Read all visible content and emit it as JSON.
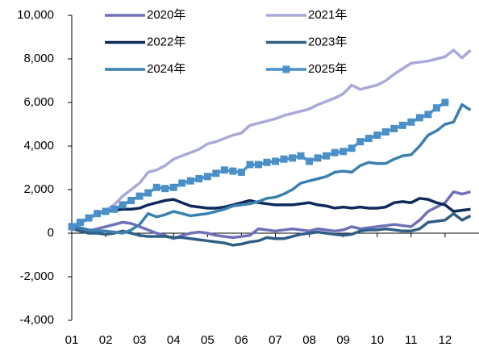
{
  "chart_data": {
    "type": "line",
    "x": [
      1,
      1.25,
      1.5,
      1.75,
      2,
      2.25,
      2.5,
      2.75,
      3,
      3.25,
      3.5,
      3.75,
      4,
      4.25,
      4.5,
      4.75,
      5,
      5.25,
      5.5,
      5.75,
      6,
      6.25,
      6.5,
      6.75,
      7,
      7.25,
      7.5,
      7.75,
      8,
      8.25,
      8.5,
      8.75,
      9,
      9.25,
      9.5,
      9.75,
      10,
      10.25,
      10.5,
      10.75,
      11,
      11.25,
      11.5,
      11.75,
      12,
      12.25,
      12.5,
      12.75
    ],
    "xlim": [
      1,
      13
    ],
    "xticks": [
      {
        "value": 1,
        "label": "01"
      },
      {
        "value": 2,
        "label": "02"
      },
      {
        "value": 3,
        "label": "03"
      },
      {
        "value": 4,
        "label": "04"
      },
      {
        "value": 5,
        "label": "05"
      },
      {
        "value": 6,
        "label": "06"
      },
      {
        "value": 7,
        "label": "07"
      },
      {
        "value": 8,
        "label": "08"
      },
      {
        "value": 9,
        "label": "09"
      },
      10,
      11,
      12
    ],
    "ylim": [
      -4000,
      10000
    ],
    "yticks": [
      {
        "value": -4000,
        "label": "-4,000"
      },
      {
        "value": -2000,
        "label": "-2,000"
      },
      0,
      {
        "value": 2000,
        "label": "2,000"
      },
      {
        "value": 4000,
        "label": "4,000"
      },
      {
        "value": 6000,
        "label": "6,000"
      },
      {
        "value": 8000,
        "label": "8,000"
      },
      {
        "value": 10000,
        "label": "10,000"
      }
    ],
    "series": [
      {
        "name": "2020年",
        "color": "#7070b8",
        "values": [
          300,
          150,
          100,
          200,
          300,
          400,
          500,
          450,
          300,
          150,
          0,
          -100,
          -250,
          -100,
          0,
          50,
          0,
          -100,
          -150,
          -200,
          -150,
          -100,
          200,
          150,
          100,
          150,
          200,
          150,
          100,
          200,
          150,
          100,
          150,
          300,
          200,
          250,
          300,
          350,
          400,
          350,
          300,
          600,
          1000,
          1200,
          1400,
          1900,
          1800,
          1900
        ]
      },
      {
        "name": "2021年",
        "color": "#a9a9da",
        "values": [
          300,
          450,
          650,
          900,
          1050,
          1300,
          1700,
          2000,
          2300,
          2800,
          2900,
          3100,
          3400,
          3550,
          3700,
          3850,
          4100,
          4200,
          4350,
          4500,
          4600,
          4950,
          5050,
          5150,
          5250,
          5400,
          5500,
          5600,
          5700,
          5900,
          6050,
          6200,
          6400,
          6800,
          6600,
          6700,
          6800,
          7000,
          7300,
          7550,
          7800,
          7850,
          7900,
          8000,
          8100,
          8400,
          8050,
          8400
        ]
      },
      {
        "name": "2022年",
        "color": "#0d2a5a",
        "values": [
          300,
          500,
          700,
          900,
          1000,
          1050,
          1100,
          1100,
          1150,
          1300,
          1400,
          1500,
          1550,
          1400,
          1250,
          1200,
          1150,
          1150,
          1200,
          1300,
          1400,
          1500,
          1400,
          1350,
          1300,
          1300,
          1300,
          1350,
          1400,
          1300,
          1250,
          1150,
          1200,
          1150,
          1200,
          1150,
          1150,
          1200,
          1400,
          1450,
          1400,
          1600,
          1550,
          1400,
          1300,
          1000,
          1050,
          1100
        ]
      },
      {
        "name": "2023年",
        "color": "#2f5e86",
        "values": [
          200,
          100,
          0,
          0,
          -50,
          0,
          100,
          0,
          -100,
          -150,
          -150,
          -150,
          -200,
          -200,
          -250,
          -300,
          -350,
          -400,
          -450,
          -550,
          -500,
          -400,
          -350,
          -200,
          -250,
          -250,
          -150,
          -50,
          0,
          50,
          0,
          -50,
          -100,
          -50,
          100,
          150,
          150,
          200,
          150,
          100,
          100,
          200,
          500,
          550,
          600,
          900,
          600,
          800
        ]
      },
      {
        "name": "2024年",
        "color": "#3b80ae",
        "values": [
          300,
          250,
          150,
          100,
          100,
          50,
          0,
          150,
          400,
          900,
          750,
          850,
          1000,
          900,
          800,
          850,
          900,
          1000,
          1100,
          1250,
          1300,
          1350,
          1450,
          1600,
          1650,
          1800,
          2000,
          2300,
          2400,
          2500,
          2600,
          2800,
          2850,
          2800,
          3100,
          3250,
          3200,
          3200,
          3400,
          3550,
          3600,
          4000,
          4500,
          4700,
          5000,
          5100,
          5900,
          5650
        ]
      },
      {
        "name": "2025年",
        "color": "#4a8fc8",
        "marker": "square",
        "values": [
          300,
          500,
          700,
          900,
          1000,
          1100,
          1300,
          1500,
          1700,
          1850,
          2100,
          2050,
          2100,
          2300,
          2400,
          2500,
          2600,
          2750,
          2900,
          2850,
          2800,
          3150,
          3150,
          3250,
          3300,
          3400,
          3450,
          3550,
          3300,
          3450,
          3550,
          3700,
          3750,
          3900,
          4200,
          4350,
          4500,
          4650,
          4800,
          4950,
          5100,
          5300,
          5450,
          5750,
          6000,
          null,
          null,
          null
        ]
      }
    ]
  }
}
